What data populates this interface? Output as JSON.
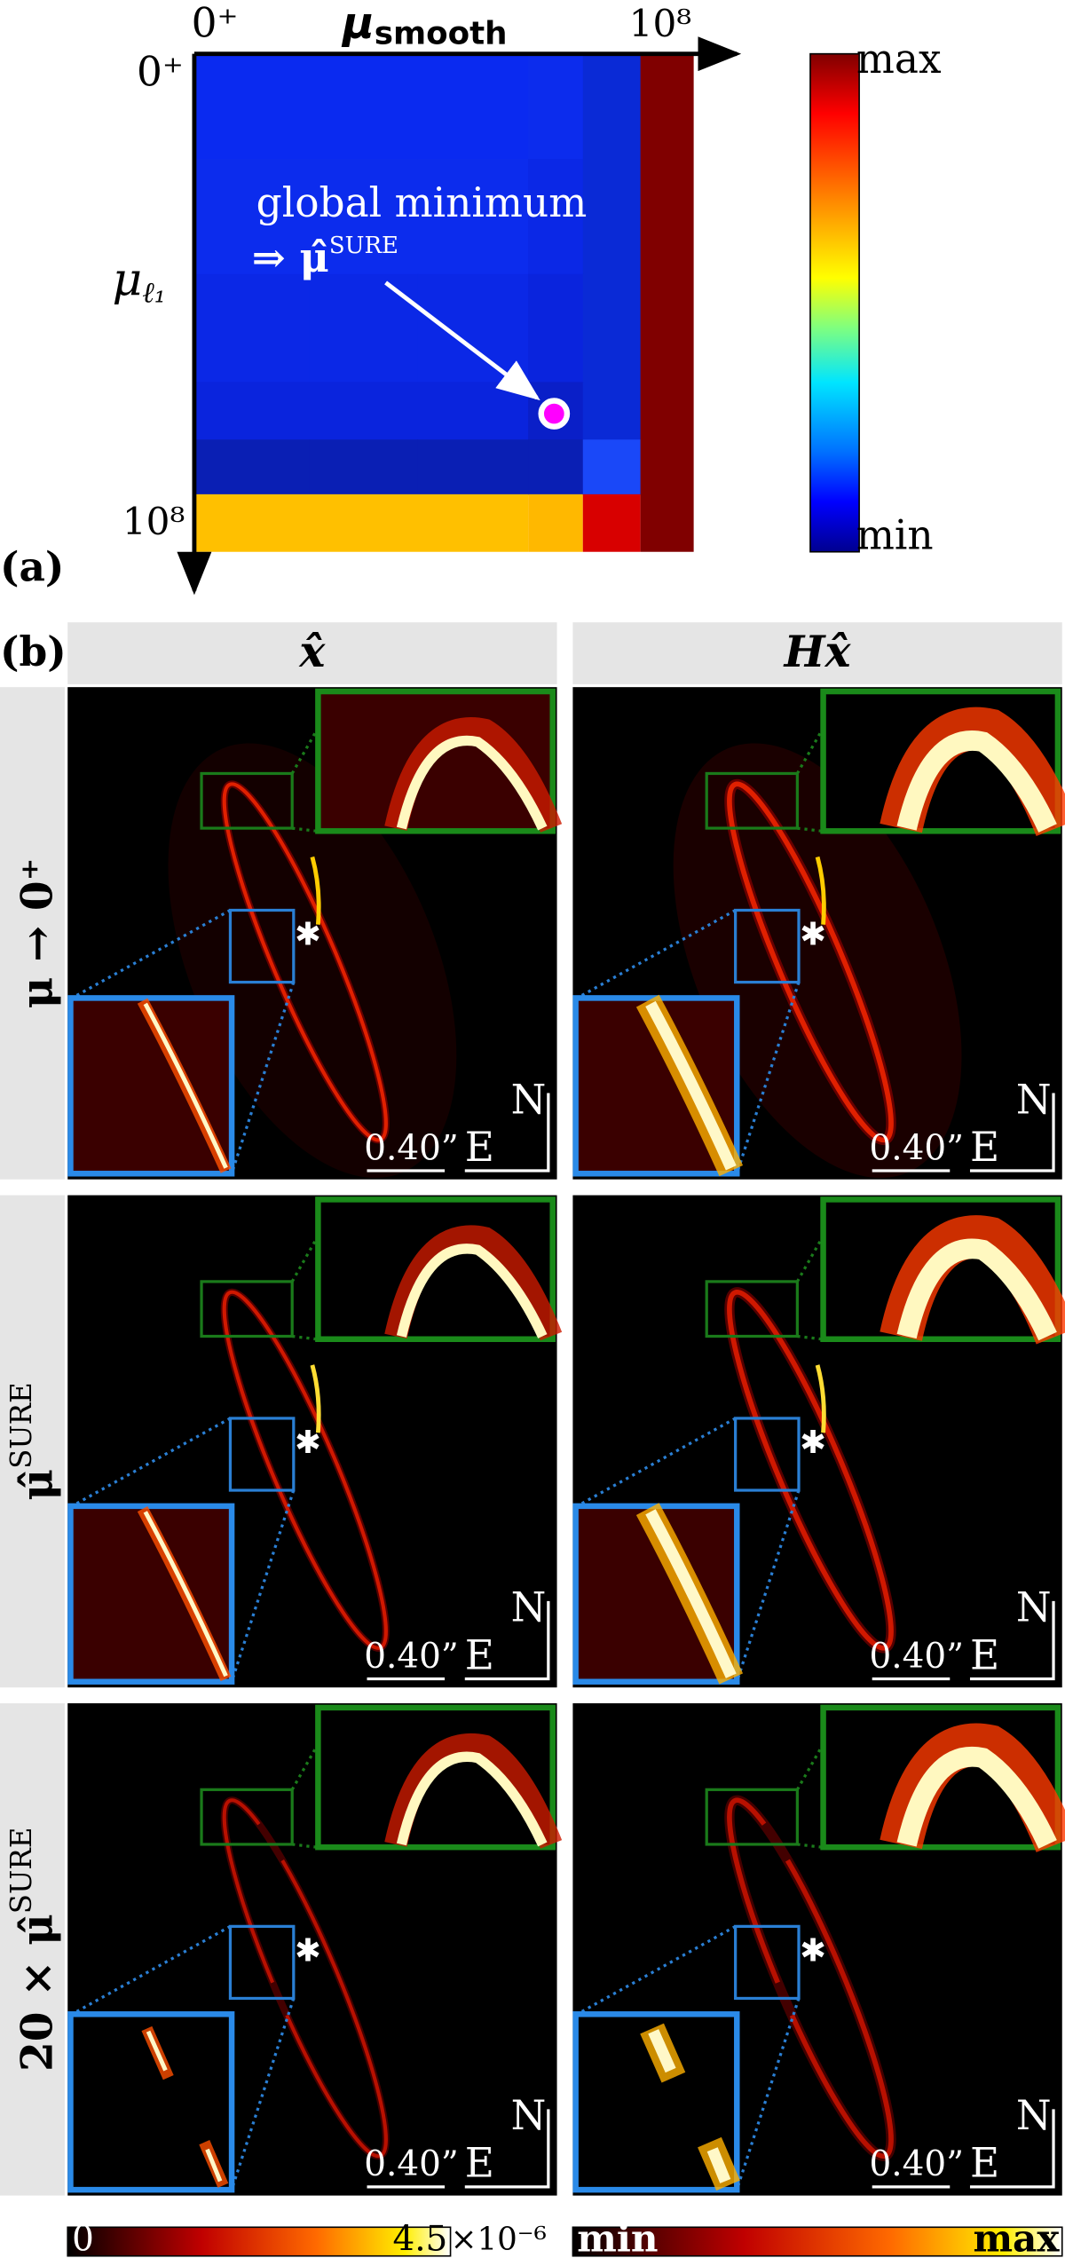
{
  "panel_a": {
    "label": "(a)",
    "x_axis": {
      "start": "0⁺",
      "label": "μ",
      "label_sub": "smooth",
      "end": "10⁸"
    },
    "y_axis": {
      "start": "0⁺",
      "label": "μ",
      "label_sub": "ℓ₁",
      "end": "10⁸"
    },
    "annotation": {
      "line1": "global minimum",
      "line2": "⇒ μ̂",
      "line2_sup": "SURE"
    },
    "colorbar": {
      "max": "max",
      "min": "min"
    }
  },
  "panel_b": {
    "label": "(b)",
    "columns": [
      "x̂",
      "Hx̂"
    ],
    "rows": [
      {
        "label": "μ → 0⁺"
      },
      {
        "label": "μ̂",
        "sup": "SURE"
      },
      {
        "label": "20 × μ̂",
        "sup": "SURE"
      }
    ],
    "scale_label": "0.40”",
    "east": "E",
    "north": "N",
    "colorbar_left": {
      "min": "0",
      "max": "4.5",
      "multiplier": "×10⁻⁶"
    },
    "colorbar_right": {
      "min": "min",
      "max": "max"
    }
  }
}
